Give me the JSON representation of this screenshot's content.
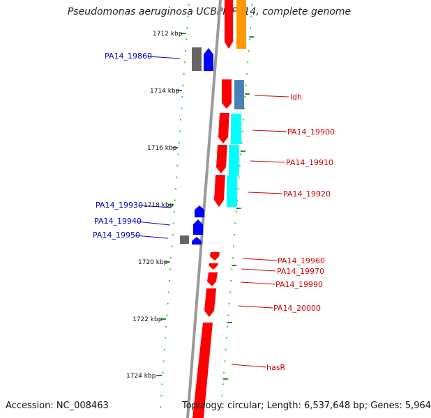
{
  "title": "Pseudomonas aeruginosa UCBPP-PA14, complete genome",
  "accession_text": "Accession: NC_008463",
  "topology_text": "Topology: circular; Length: 6,537,648 bp; Genes: 5,964",
  "colors": {
    "backbone": "#888888",
    "tick": "#2e8b2e",
    "dots": "#33cc33",
    "forward_red": "#ff0000",
    "reverse_blue": "#0000ff",
    "gray_gene": "#666666",
    "orange_gene": "#ff9900",
    "steel_gene": "#4682b4",
    "cyan_gene": "#00ffff",
    "label_blue": "#0000cc",
    "label_red": "#cc0000"
  },
  "ruler_labels": [
    "1712 kbp",
    "1714 kbp",
    "1716 kbp",
    "1718 kbp",
    "1720 kbp",
    "1722 kbp",
    "1724 kbp"
  ],
  "left_labels": [
    "PA14_19860",
    "PA14_19930",
    "PA14_19940",
    "PA14_19950"
  ],
  "right_labels": [
    "ldh",
    "PA14_19900",
    "PA14_19910",
    "PA14_19920",
    "PA14_19960",
    "PA14_19970",
    "PA14_19990",
    "PA14_20000",
    "hasR"
  ]
}
